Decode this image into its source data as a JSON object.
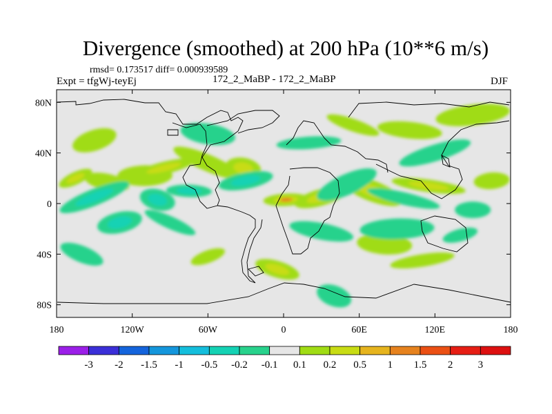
{
  "title": "Divergence (smoothed) at 200 hPa (10**6 m/s)",
  "stats_line": "rmsd= 0.173517  diff= 0.000939589",
  "expt_line": "Expt = tfgWj-teyEj",
  "comparison": "172_2_MaBP - 172_2_MaBP",
  "season": "DJF",
  "chart_data": {
    "type": "heatmap",
    "title": "Divergence (smoothed) at 200 hPa (10**6 m/s)",
    "units": "10**6 m/s",
    "x_range": [
      -180,
      180
    ],
    "y_range": [
      -90,
      90
    ],
    "x_ticks": [
      {
        "value": -180,
        "label": "180"
      },
      {
        "value": -120,
        "label": "120W"
      },
      {
        "value": -60,
        "label": "60W"
      },
      {
        "value": 0,
        "label": "0"
      },
      {
        "value": 60,
        "label": "60E"
      },
      {
        "value": 120,
        "label": "120E"
      },
      {
        "value": 180,
        "label": "180"
      }
    ],
    "y_ticks": [
      {
        "value": 80,
        "label": "80N"
      },
      {
        "value": 40,
        "label": "40N"
      },
      {
        "value": 0,
        "label": "0"
      },
      {
        "value": -40,
        "label": "40S"
      },
      {
        "value": -80,
        "label": "80S"
      }
    ],
    "colorbar": {
      "labels": [
        "-3",
        "-2",
        "-1.5",
        "-1",
        "-0.5",
        "-0.2",
        "-0.1",
        "0.1",
        "0.2",
        "0.5",
        "1",
        "1.5",
        "2",
        "3"
      ],
      "colors": [
        "#9b1fe8",
        "#3b2fd8",
        "#1464dc",
        "#1496dc",
        "#14bedc",
        "#14d2b4",
        "#28d28c",
        "#e6e6e6",
        "#a0dc14",
        "#c8dc14",
        "#e6b41e",
        "#e6821e",
        "#eb5014",
        "#e61e14"
      ]
    },
    "features": [
      {
        "lon": -165,
        "lat": 20,
        "value": 0.6
      },
      {
        "lon": -140,
        "lat": 17,
        "value": 0.25
      },
      {
        "lon": -110,
        "lat": 22,
        "value": 0.3
      },
      {
        "lon": -95,
        "lat": 28,
        "value": 0.5
      },
      {
        "lon": -60,
        "lat": 32,
        "value": 0.3
      },
      {
        "lon": -32,
        "lat": 28,
        "value": 0.8
      },
      {
        "lon": 2,
        "lat": 3,
        "value": 1.2
      },
      {
        "lon": 30,
        "lat": 5,
        "value": 0.6
      },
      {
        "lon": 70,
        "lat": 10,
        "value": 0.5
      },
      {
        "lon": 115,
        "lat": 14,
        "value": 0.5
      },
      {
        "lon": 165,
        "lat": 18,
        "value": 0.4
      },
      {
        "lon": -150,
        "lat": 50,
        "value": 0.3
      },
      {
        "lon": 55,
        "lat": 62,
        "value": 0.3
      },
      {
        "lon": 100,
        "lat": 58,
        "value": 0.25
      },
      {
        "lon": 150,
        "lat": 70,
        "value": 0.3
      },
      {
        "lon": -60,
        "lat": -42,
        "value": 0.3
      },
      {
        "lon": -5,
        "lat": -52,
        "value": 0.5
      },
      {
        "lon": 80,
        "lat": -32,
        "value": 0.3
      },
      {
        "lon": 110,
        "lat": -45,
        "value": 0.4
      },
      {
        "lon": -150,
        "lat": 5,
        "value": -0.5
      },
      {
        "lon": -100,
        "lat": 3,
        "value": -0.6
      },
      {
        "lon": -75,
        "lat": 10,
        "value": -0.8
      },
      {
        "lon": -30,
        "lat": 18,
        "value": -0.5
      },
      {
        "lon": 50,
        "lat": 15,
        "value": -0.3
      },
      {
        "lon": 95,
        "lat": 4,
        "value": -0.4
      },
      {
        "lon": 150,
        "lat": -5,
        "value": -0.4
      },
      {
        "lon": -130,
        "lat": -15,
        "value": -0.5
      },
      {
        "lon": -90,
        "lat": -15,
        "value": -0.3
      },
      {
        "lon": 30,
        "lat": -22,
        "value": -0.3
      },
      {
        "lon": 90,
        "lat": -20,
        "value": -0.4
      },
      {
        "lon": 140,
        "lat": -25,
        "value": -0.3
      },
      {
        "lon": -160,
        "lat": -40,
        "value": -0.3
      },
      {
        "lon": -60,
        "lat": 55,
        "value": -0.2
      },
      {
        "lon": 20,
        "lat": 48,
        "value": -0.25
      },
      {
        "lon": 120,
        "lat": 40,
        "value": -0.2
      },
      {
        "lon": 40,
        "lat": -73,
        "value": -0.3
      }
    ]
  }
}
